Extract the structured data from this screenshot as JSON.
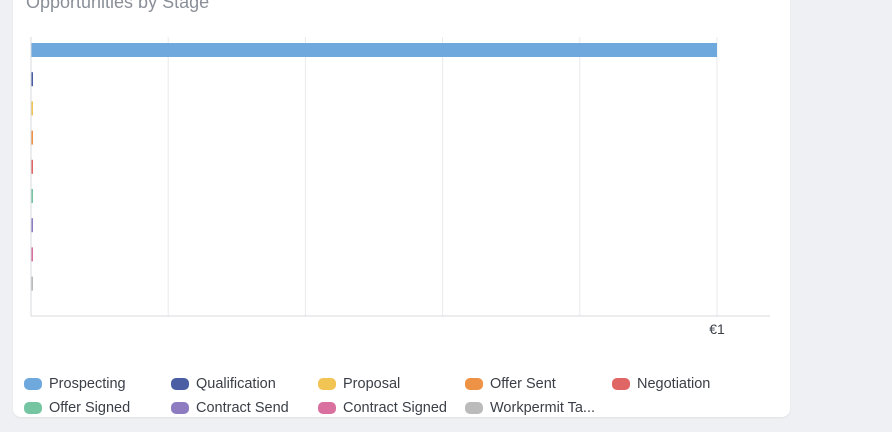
{
  "card": {
    "title": "Opportunities by Stage"
  },
  "chart_data": {
    "type": "bar",
    "orientation": "horizontal",
    "categories": [
      "Prospecting",
      "Qualification",
      "Proposal",
      "Offer Sent",
      "Negotiation",
      "Offer Signed",
      "Contract Send",
      "Contract Signed",
      "Workpermit Ta..."
    ],
    "values": [
      1,
      0,
      0,
      0,
      0,
      0,
      0,
      0,
      0
    ],
    "colors": [
      "#6fa8dc",
      "#4a5fa3",
      "#f1c453",
      "#ee9245",
      "#e06666",
      "#76c5a2",
      "#8e7cc3",
      "#d9709f",
      "#bbbbbb"
    ],
    "x_tick_labels": [
      "€1"
    ],
    "xlim": [
      0,
      1
    ],
    "grid": true,
    "legend_position": "bottom"
  }
}
